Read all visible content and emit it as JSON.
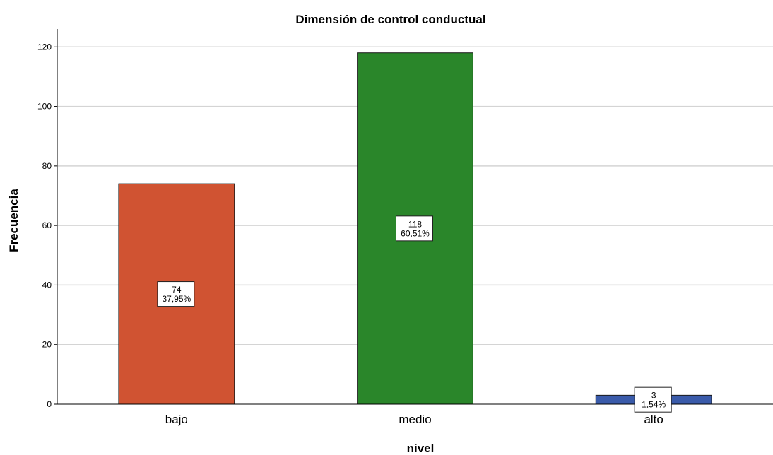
{
  "chart_data": {
    "type": "bar",
    "title": "Dimensión de control conductual",
    "xlabel": "nivel",
    "ylabel": "Frecuencia",
    "categories": [
      "bajo",
      "medio",
      "alto"
    ],
    "values": [
      74,
      118,
      3
    ],
    "percent_labels": [
      "37,95%",
      "60,51%",
      "1,54%"
    ],
    "value_labels": [
      "74",
      "118",
      "3"
    ],
    "colors": [
      "#d05332",
      "#2a862a",
      "#3a5baa"
    ],
    "ylim": [
      0,
      126
    ],
    "yticks": [
      0,
      20,
      40,
      60,
      80,
      100,
      120
    ],
    "grid": true
  }
}
